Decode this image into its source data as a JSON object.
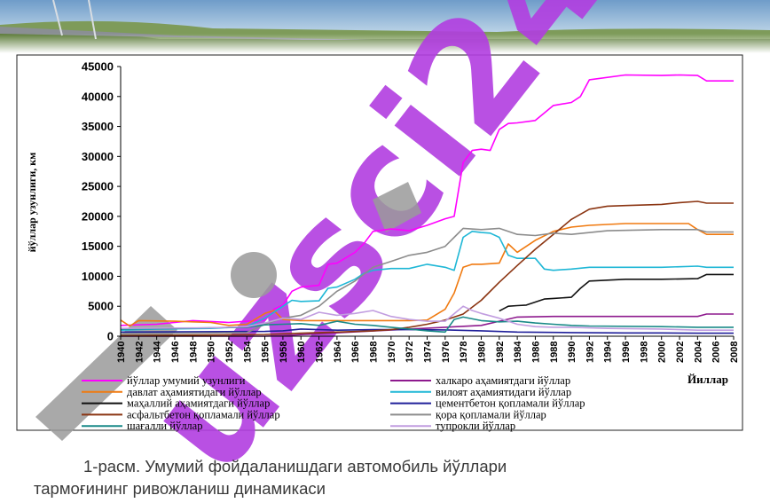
{
  "caption": {
    "line1": "1-расм. Умумий фойдаланишдаги автомобиль йўллари",
    "line2": "тармоғининг ривожланиш динамикаси"
  },
  "watermark": {
    "text": "uzsci24",
    "color": "#b13de0"
  },
  "chart_data": {
    "type": "line",
    "ylabel": "йўллар узунлиги, км",
    "xlabel": "Йиллар",
    "ylim": [
      0,
      45000
    ],
    "yticks": [
      0,
      5000,
      10000,
      15000,
      20000,
      25000,
      30000,
      35000,
      40000,
      45000
    ],
    "xlim": [
      1940,
      2008
    ],
    "xticks": [
      1940,
      1942,
      1944,
      1946,
      1948,
      1950,
      1952,
      1954,
      1956,
      1958,
      1960,
      1962,
      1964,
      1966,
      1968,
      1970,
      1972,
      1974,
      1976,
      1978,
      1980,
      1982,
      1984,
      1986,
      1988,
      1990,
      1992,
      1994,
      1996,
      1998,
      2000,
      2002,
      2004,
      2006,
      2008
    ],
    "grid": false,
    "legend_position": "bottom",
    "series": [
      {
        "name": "йўллар умумий узунлиги",
        "color": "#ff00ff",
        "x": [
          1940,
          1944,
          1948,
          1952,
          1954,
          1956,
          1957,
          1958,
          1959,
          1960,
          1962,
          1963,
          1964,
          1966,
          1967,
          1968,
          1970,
          1972,
          1974,
          1976,
          1977,
          1978,
          1979,
          1980,
          1981,
          1982,
          1983,
          1984,
          1986,
          1988,
          1990,
          1991,
          1992,
          1996,
          2000,
          2002,
          2004,
          2005,
          2008
        ],
        "y": [
          1800,
          2000,
          2600,
          2300,
          2500,
          2700,
          4500,
          5200,
          7500,
          8200,
          8500,
          12000,
          12200,
          14000,
          15500,
          17500,
          17900,
          17600,
          18500,
          19600,
          20000,
          29000,
          31000,
          31200,
          31000,
          34500,
          35500,
          35600,
          36000,
          38500,
          39000,
          40000,
          42800,
          43600,
          43500,
          43600,
          43500,
          42600,
          42600
        ]
      },
      {
        "name": "халкаро аҳамиятдаги йўллар",
        "color": "#8e1a8e",
        "x": [
          1940,
          1956,
          1958,
          1976,
          1980,
          1982,
          1984,
          1988,
          2000,
          2004,
          2005,
          2008
        ],
        "y": [
          0,
          0,
          100,
          1500,
          1800,
          2500,
          3200,
          3300,
          3300,
          3300,
          3700,
          3700
        ]
      },
      {
        "name": "давлат аҳамиятидаги йўллар",
        "color": "#f07a10",
        "x": [
          1940,
          1941,
          1942,
          1946,
          1948,
          1950,
          1952,
          1954,
          1956,
          1957,
          1958,
          1960,
          1964,
          1968,
          1972,
          1974,
          1976,
          1977,
          1978,
          1979,
          1980,
          1982,
          1983,
          1984,
          1986,
          1988,
          1990,
          1992,
          1996,
          2000,
          2003,
          2004,
          2005,
          2008
        ],
        "y": [
          2700,
          1700,
          2600,
          2500,
          2400,
          2300,
          1800,
          2000,
          3800,
          4300,
          2800,
          2600,
          2600,
          2600,
          2600,
          2700,
          4500,
          7200,
          11500,
          12000,
          12000,
          12200,
          15400,
          14000,
          16000,
          17500,
          18200,
          18500,
          18800,
          18800,
          18800,
          17800,
          17000,
          17000
        ]
      },
      {
        "name": "вилоят аҳамиятидаги йўллар",
        "color": "#1fb7d6",
        "x": [
          1940,
          1944,
          1950,
          1954,
          1956,
          1958,
          1959,
          1960,
          1962,
          1963,
          1964,
          1966,
          1967,
          1968,
          1970,
          1972,
          1974,
          1976,
          1977,
          1978,
          1979,
          1980,
          1981,
          1982,
          1983,
          1984,
          1986,
          1987,
          1988,
          1990,
          1992,
          2000,
          2004,
          2005,
          2008
        ],
        "y": [
          1000,
          1200,
          1300,
          1600,
          3000,
          5000,
          6000,
          5800,
          5900,
          8000,
          8200,
          9500,
          10500,
          11000,
          11300,
          11300,
          12000,
          11500,
          11000,
          16500,
          17500,
          17300,
          17200,
          16500,
          13500,
          13000,
          13000,
          11200,
          11000,
          11200,
          11500,
          11500,
          11700,
          11500,
          11500
        ]
      },
      {
        "name": "маҳаллий аҳамиятдаги йўллар",
        "color": "#111111",
        "x": [
          1982,
          1983,
          1984,
          1985,
          1986,
          1987,
          1988,
          1990,
          1991,
          1992,
          1996,
          2000,
          2004,
          2005,
          2008
        ],
        "y": [
          4200,
          5000,
          5100,
          5200,
          5700,
          6200,
          6300,
          6500,
          8000,
          9200,
          9500,
          9500,
          9600,
          10300,
          10300
        ]
      },
      {
        "name": "цементбетон қопламали йўллар",
        "color": "#20209a",
        "x": [
          1940,
          1956,
          1958,
          1960,
          1964,
          1968,
          1972,
          1976,
          1980,
          1984,
          1990,
          1996,
          2000,
          2004,
          2008
        ],
        "y": [
          700,
          800,
          900,
          1200,
          1000,
          1100,
          1100,
          1050,
          900,
          700,
          600,
          550,
          550,
          500,
          500
        ]
      },
      {
        "name": "асфальтбетон қопламали йўллар",
        "color": "#8b3512",
        "x": [
          1940,
          1950,
          1956,
          1960,
          1964,
          1968,
          1970,
          1972,
          1974,
          1976,
          1978,
          1980,
          1982,
          1984,
          1986,
          1988,
          1990,
          1992,
          1994,
          1996,
          2000,
          2002,
          2004,
          2005,
          2008
        ],
        "y": [
          100,
          200,
          300,
          500,
          700,
          900,
          1100,
          1500,
          2000,
          2700,
          3700,
          6000,
          9000,
          11800,
          14500,
          17000,
          19500,
          21200,
          21700,
          21800,
          22000,
          22300,
          22500,
          22200,
          22200
        ]
      },
      {
        "name": "қора қопламали йўллар",
        "color": "#8c8c8c",
        "x": [
          1940,
          1954,
          1956,
          1958,
          1960,
          1962,
          1964,
          1966,
          1968,
          1970,
          1972,
          1974,
          1976,
          1977,
          1978,
          1980,
          1982,
          1984,
          1986,
          1988,
          1990,
          1994,
          2000,
          2004,
          2005,
          2008
        ],
        "y": [
          400,
          600,
          2000,
          3000,
          3500,
          5000,
          7500,
          9200,
          11500,
          12500,
          13500,
          14000,
          15000,
          16500,
          18000,
          17800,
          18000,
          17000,
          16800,
          17200,
          17000,
          17600,
          17800,
          17800,
          17400,
          17400
        ]
      },
      {
        "name": "шағалли йўллар",
        "color": "#1a8a88",
        "x": [
          1940,
          1946,
          1950,
          1954,
          1956,
          1958,
          1960,
          1962,
          1964,
          1966,
          1968,
          1970,
          1972,
          1974,
          1976,
          1977,
          1978,
          1980,
          1982,
          1984,
          1986,
          1988,
          1990,
          1992,
          2000,
          2004,
          2008
        ],
        "y": [
          1200,
          1300,
          1400,
          1500,
          1900,
          2000,
          2100,
          1800,
          2500,
          2000,
          1800,
          1500,
          1200,
          900,
          700,
          2800,
          3200,
          2600,
          2400,
          2500,
          2200,
          2000,
          1800,
          1700,
          1600,
          1500,
          1500
        ]
      },
      {
        "name": "тупрокли йўллар",
        "color": "#c19de0",
        "x": [
          1940,
          1950,
          1954,
          1956,
          1958,
          1960,
          1962,
          1964,
          1966,
          1968,
          1970,
          1972,
          1974,
          1976,
          1978,
          1979,
          1980,
          1982,
          1984,
          1986,
          1988,
          1990,
          1994,
          2000,
          2004,
          2008
        ],
        "y": [
          1300,
          1400,
          1600,
          2200,
          3000,
          2800,
          4000,
          3500,
          3800,
          4300,
          3300,
          2800,
          2500,
          2500,
          5000,
          4300,
          3800,
          3000,
          2000,
          1600,
          1500,
          1500,
          1300,
          1200,
          1000,
          1000
        ]
      }
    ]
  }
}
